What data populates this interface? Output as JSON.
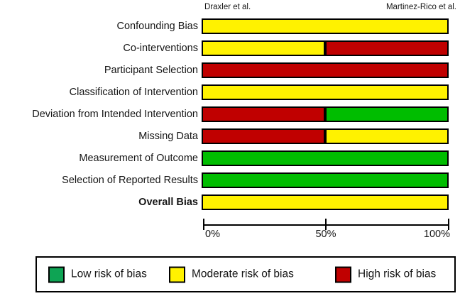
{
  "chart_data": {
    "type": "bar",
    "orientation": "horizontal",
    "stacked": true,
    "grid": false,
    "column_headers": [
      "Draxler et al.",
      "Martinez-Rico et al."
    ],
    "categories": [
      "Confounding Bias",
      "Co-interventions",
      "Participant Selection",
      "Classification of Intervention",
      "Deviation from Intended Intervention",
      "Missing Data",
      "Measurement of Outcome",
      "Selection of Reported Results",
      "Overall Bias"
    ],
    "rows": [
      {
        "label": "Confounding Bias",
        "bold": false,
        "segments": [
          {
            "risk": "moderate",
            "pct": 100
          }
        ]
      },
      {
        "label": "Co-interventions",
        "bold": false,
        "segments": [
          {
            "risk": "moderate",
            "pct": 50
          },
          {
            "risk": "high",
            "pct": 50
          }
        ]
      },
      {
        "label": "Participant Selection",
        "bold": false,
        "segments": [
          {
            "risk": "high",
            "pct": 100
          }
        ]
      },
      {
        "label": "Classification of Intervention",
        "bold": false,
        "segments": [
          {
            "risk": "moderate",
            "pct": 100
          }
        ]
      },
      {
        "label": "Deviation from Intended Intervention",
        "bold": false,
        "segments": [
          {
            "risk": "high",
            "pct": 50
          },
          {
            "risk": "low",
            "pct": 50
          }
        ]
      },
      {
        "label": "Missing Data",
        "bold": false,
        "segments": [
          {
            "risk": "high",
            "pct": 50
          },
          {
            "risk": "moderate",
            "pct": 50
          }
        ]
      },
      {
        "label": "Measurement of Outcome",
        "bold": false,
        "segments": [
          {
            "risk": "low",
            "pct": 100
          }
        ]
      },
      {
        "label": "Selection of Reported Results",
        "bold": false,
        "segments": [
          {
            "risk": "low",
            "pct": 100
          }
        ]
      },
      {
        "label": "Overall Bias",
        "bold": true,
        "segments": [
          {
            "risk": "moderate",
            "pct": 100
          }
        ]
      }
    ],
    "x_axis": {
      "range": [
        0,
        100
      ],
      "ticks": [
        "0%",
        "50%",
        "100%"
      ],
      "tick_values": [
        0,
        50,
        100
      ]
    },
    "colors": {
      "low": "#00BD00",
      "moderate": "#FFF200",
      "high": "#C00000",
      "border": "#000000"
    },
    "legend": [
      {
        "label": "Low risk of bias",
        "color": "#0EA454"
      },
      {
        "label": "Moderate risk of bias",
        "color": "#FFF200"
      },
      {
        "label": "High risk of bias",
        "color": "#C00000"
      }
    ],
    "legend_position": "bottom"
  }
}
